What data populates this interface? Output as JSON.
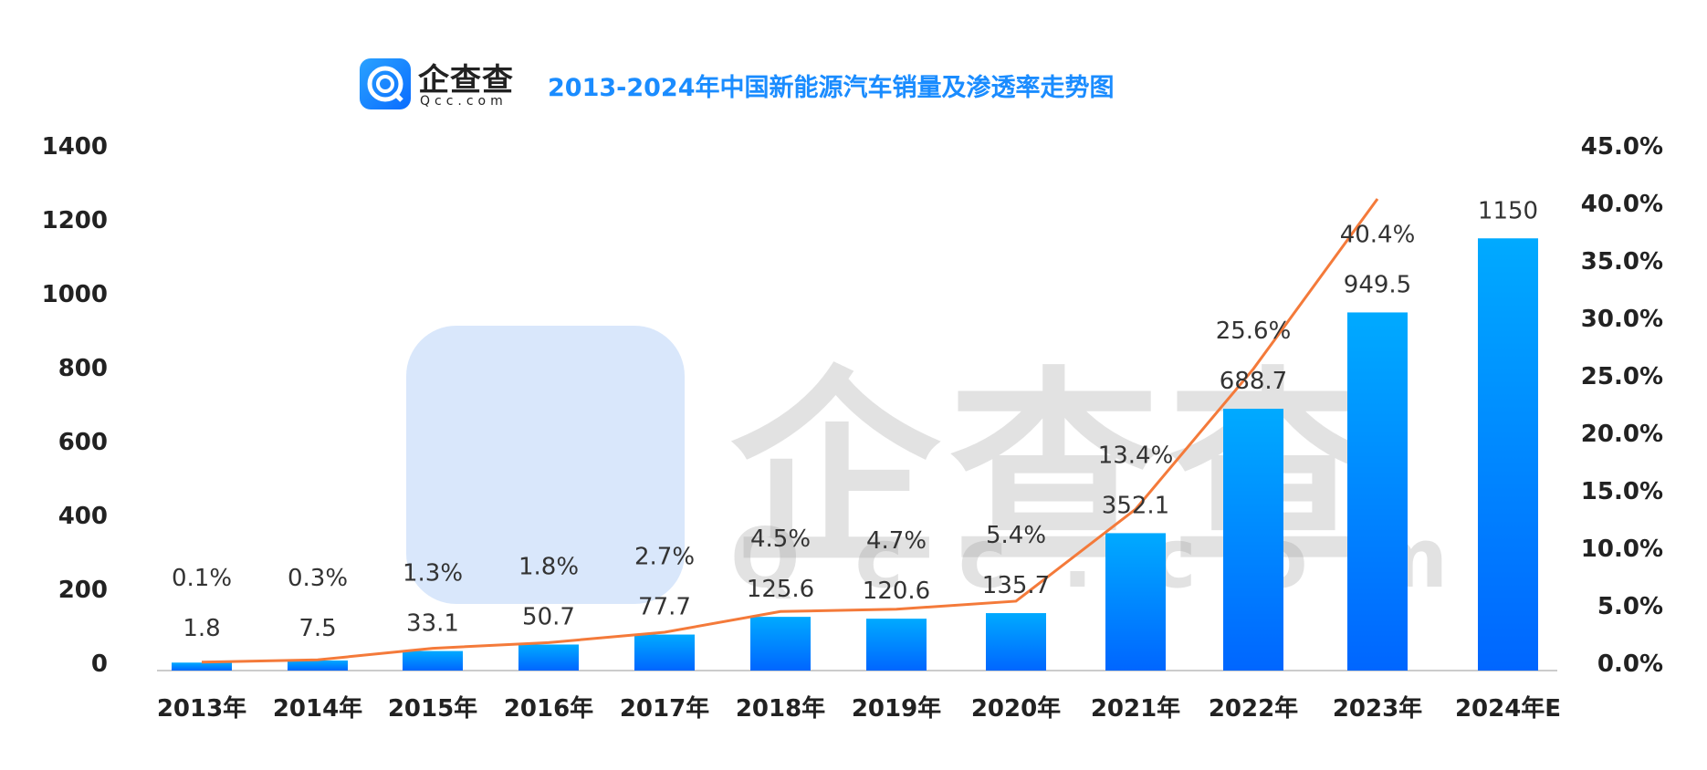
{
  "header": {
    "brand_name": "企查查",
    "brand_domain": "Qcc.com",
    "title": "2013-2024年中国新能源汽车销量及渗透率走势图"
  },
  "watermark": {
    "text": "企查查",
    "sub": "Qcc.com"
  },
  "chart_data": {
    "type": "bar+line",
    "title": "2013-2024年中国新能源汽车销量及渗透率走势图",
    "categories": [
      "2013年",
      "2014年",
      "2015年",
      "2016年",
      "2017年",
      "2018年",
      "2019年",
      "2020年",
      "2021年",
      "2022年",
      "2023年",
      "2024年E"
    ],
    "series": [
      {
        "type": "bar",
        "axis": "left",
        "values": [
          1.8,
          7.5,
          33.1,
          50.7,
          77.7,
          125.6,
          120.6,
          135.7,
          352.1,
          688.7,
          949.5,
          1150
        ],
        "labels": [
          "1.8",
          "7.5",
          "33.1",
          "50.7",
          "77.7",
          "125.6",
          "120.6",
          "135.7",
          "352.1",
          "688.7",
          "949.5",
          "1150"
        ]
      },
      {
        "type": "line",
        "axis": "right",
        "values": [
          0.1,
          0.3,
          1.3,
          1.8,
          2.7,
          4.5,
          4.7,
          5.4,
          13.4,
          25.6,
          40.4,
          null
        ],
        "labels": [
          "0.1%",
          "0.3%",
          "1.3%",
          "1.8%",
          "2.7%",
          "4.5%",
          "4.7%",
          "5.4%",
          "13.4%",
          "25.6%",
          "40.4%",
          ""
        ]
      }
    ],
    "y_left": {
      "range": [
        0,
        1400
      ],
      "ticks": [
        "0",
        "200",
        "400",
        "600",
        "800",
        "1000",
        "1200",
        "1400"
      ]
    },
    "y_right": {
      "range": [
        0,
        45
      ],
      "ticks": [
        "0.0%",
        "5.0%",
        "10.0%",
        "15.0%",
        "20.0%",
        "25.0%",
        "30.0%",
        "35.0%",
        "40.0%",
        "45.0%"
      ]
    },
    "grid": false,
    "legend": "none",
    "colors": {
      "bar_top": "#00aaff",
      "bar_bottom": "#0066ff",
      "line": "#f47a3a",
      "title": "#1a8cff"
    }
  }
}
